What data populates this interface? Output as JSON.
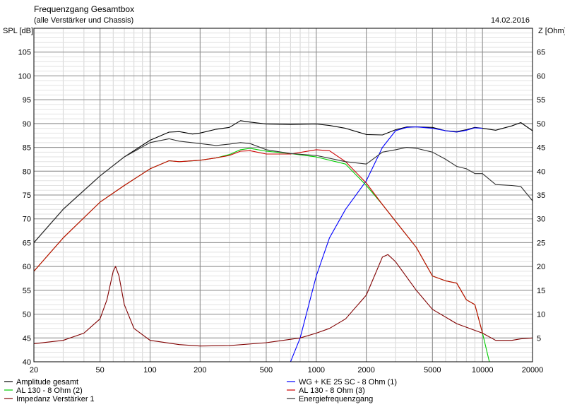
{
  "chart_data": {
    "type": "line",
    "title": "Frequenzgang Gesamtbox",
    "subtitle": "(alle Verstärker und Chassis)",
    "date": "14.02.2016",
    "ylabel": "SPL [dB]",
    "y2label": "Z [Ohm]",
    "xscale": "log",
    "xlim": [
      20,
      20000
    ],
    "ylim": [
      40,
      110
    ],
    "y2lim": [
      0,
      70
    ],
    "x_ticks": [
      20,
      50,
      100,
      200,
      500,
      1000,
      2000,
      5000,
      10000,
      20000
    ],
    "x_tick_labels": [
      "20",
      "50",
      "100",
      "200",
      "500",
      "1000",
      "2000",
      "5000",
      "10000",
      "20000"
    ],
    "y_ticks": [
      40,
      45,
      50,
      55,
      60,
      65,
      70,
      75,
      80,
      85,
      90,
      95,
      100,
      105
    ],
    "y_tick_labels": [
      "40",
      "45",
      "50",
      "55",
      "60",
      "65",
      "70",
      "75",
      "80",
      "85",
      "90",
      "95",
      "100",
      "105"
    ],
    "y2_ticks": [
      5,
      10,
      15,
      20,
      25,
      30,
      35,
      40,
      45,
      50,
      55,
      60,
      65
    ],
    "y2_tick_labels": [
      "5",
      "10",
      "15",
      "20",
      "25",
      "30",
      "35",
      "40",
      "45",
      "50",
      "55",
      "60",
      "65"
    ],
    "grid": true,
    "legend_position": "bottom",
    "series": [
      {
        "name": "Amplitude gesamt",
        "color": "#000000",
        "axis": "left",
        "x": [
          20,
          30,
          50,
          70,
          100,
          130,
          150,
          180,
          200,
          250,
          300,
          350,
          400,
          500,
          700,
          1000,
          1200,
          1500,
          2000,
          2500,
          3000,
          3500,
          4000,
          5000,
          6000,
          7000,
          8000,
          9000,
          10000,
          12000,
          15000,
          17000,
          20000
        ],
        "y": [
          65,
          72,
          79,
          83,
          86.5,
          88.2,
          88.3,
          87.8,
          88,
          88.8,
          89.2,
          90.6,
          90.3,
          89.9,
          89.8,
          89.9,
          89.6,
          89,
          87.7,
          87.6,
          88.7,
          89.3,
          89.3,
          89.2,
          88.5,
          88.3,
          88.7,
          89.2,
          89,
          88.6,
          89.5,
          90.2,
          88.5
        ]
      },
      {
        "name": "WG + KE 25 SC - 8 Ohm (1)",
        "color": "#0000ff",
        "axis": "left",
        "x": [
          700,
          800,
          1000,
          1200,
          1500,
          2000,
          2500,
          3000,
          3500,
          4000,
          5000,
          6000,
          7000,
          8000,
          9000,
          10000
        ],
        "y": [
          40,
          45,
          58,
          66,
          72,
          78,
          85,
          88.5,
          89.2,
          89.3,
          89,
          88.5,
          88.2,
          88.6,
          89.1,
          89
        ]
      },
      {
        "name": "AL 130 - 8 Ohm (2)",
        "color": "#00cc00",
        "axis": "left",
        "x": [
          20,
          30,
          50,
          70,
          100,
          130,
          150,
          200,
          250,
          300,
          350,
          400,
          500,
          700,
          1000,
          1500,
          2000,
          2500,
          3000,
          4000,
          5000,
          6000,
          7000,
          8000,
          9000,
          10000,
          11000,
          12000,
          15000,
          20000
        ],
        "y": [
          59,
          66,
          73.5,
          77,
          80.5,
          82.2,
          82,
          82.3,
          82.8,
          83.5,
          84.5,
          84.8,
          84.2,
          83.7,
          83,
          81.5,
          77,
          73,
          69.5,
          64,
          58,
          57,
          56.5,
          53,
          52,
          46,
          40,
          40,
          40,
          40
        ]
      },
      {
        "name": "AL 130 - 8 Ohm (3)",
        "color": "#cc0000",
        "axis": "left",
        "x": [
          20,
          30,
          50,
          70,
          100,
          130,
          150,
          200,
          250,
          300,
          350,
          400,
          500,
          700,
          1000,
          1200,
          1500,
          2000,
          2500,
          3000,
          4000,
          5000,
          6000,
          7000,
          8000,
          9000,
          10000
        ],
        "y": [
          59,
          66,
          73.5,
          77,
          80.5,
          82.2,
          82,
          82.3,
          82.8,
          83.3,
          84.2,
          84.3,
          83.6,
          83.6,
          84.5,
          84.3,
          82,
          77.5,
          73,
          69.5,
          64,
          58,
          57,
          56.5,
          53,
          52,
          46
        ]
      },
      {
        "name": "Impedanz Verstärker 1",
        "color": "#800000",
        "axis": "right",
        "x": [
          20,
          30,
          40,
          50,
          55,
          60,
          62,
          65,
          70,
          80,
          100,
          150,
          200,
          300,
          500,
          800,
          1000,
          1200,
          1500,
          2000,
          2300,
          2500,
          2700,
          3000,
          4000,
          5000,
          7000,
          10000,
          12000,
          15000,
          17000,
          20000
        ],
        "y": [
          3.8,
          4.5,
          6,
          9,
          13,
          19,
          20,
          18,
          12,
          7,
          4.5,
          3.6,
          3.3,
          3.4,
          4,
          5,
          6,
          7,
          9,
          14,
          19,
          22,
          22.5,
          21,
          15,
          11,
          8,
          6,
          4.5,
          4.5,
          4.8,
          5
        ]
      },
      {
        "name": "Energiefrequenzgang",
        "color": "#303030",
        "axis": "left",
        "x": [
          20,
          30,
          50,
          70,
          100,
          130,
          150,
          200,
          250,
          300,
          350,
          400,
          500,
          700,
          1000,
          1500,
          2000,
          2500,
          3000,
          3500,
          4000,
          5000,
          6000,
          7000,
          8000,
          9000,
          10000,
          12000,
          15000,
          17000,
          20000
        ],
        "y": [
          65,
          72,
          79,
          83,
          86,
          86.8,
          86.3,
          85.8,
          85.4,
          85.7,
          86,
          85.8,
          84.5,
          83.7,
          83.3,
          82,
          81.5,
          84,
          84.5,
          85,
          84.8,
          84,
          82.5,
          81,
          80.5,
          79.5,
          79.5,
          77.2,
          77,
          76.8,
          73.8
        ]
      }
    ]
  }
}
